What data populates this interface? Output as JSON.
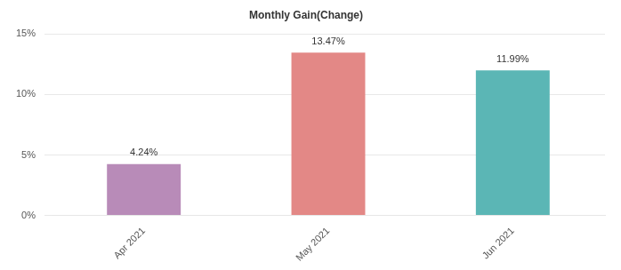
{
  "chart_data": {
    "type": "bar",
    "title": "Monthly Gain(Change)",
    "categories": [
      "Apr 2021",
      "May 2021",
      "Jun 2021"
    ],
    "values": [
      4.24,
      13.47,
      11.99
    ],
    "value_labels": [
      "4.24%",
      "13.47%",
      "11.99%"
    ],
    "colors": [
      "#b88bb8",
      "#e38886",
      "#5bb6b5"
    ],
    "ylim": [
      0,
      15
    ],
    "yticks": [
      {
        "value": 0,
        "label": "0%"
      },
      {
        "value": 5,
        "label": "5%"
      },
      {
        "value": 10,
        "label": "10%"
      },
      {
        "value": 15,
        "label": "15%"
      }
    ],
    "grid": true,
    "data_labels": true
  }
}
